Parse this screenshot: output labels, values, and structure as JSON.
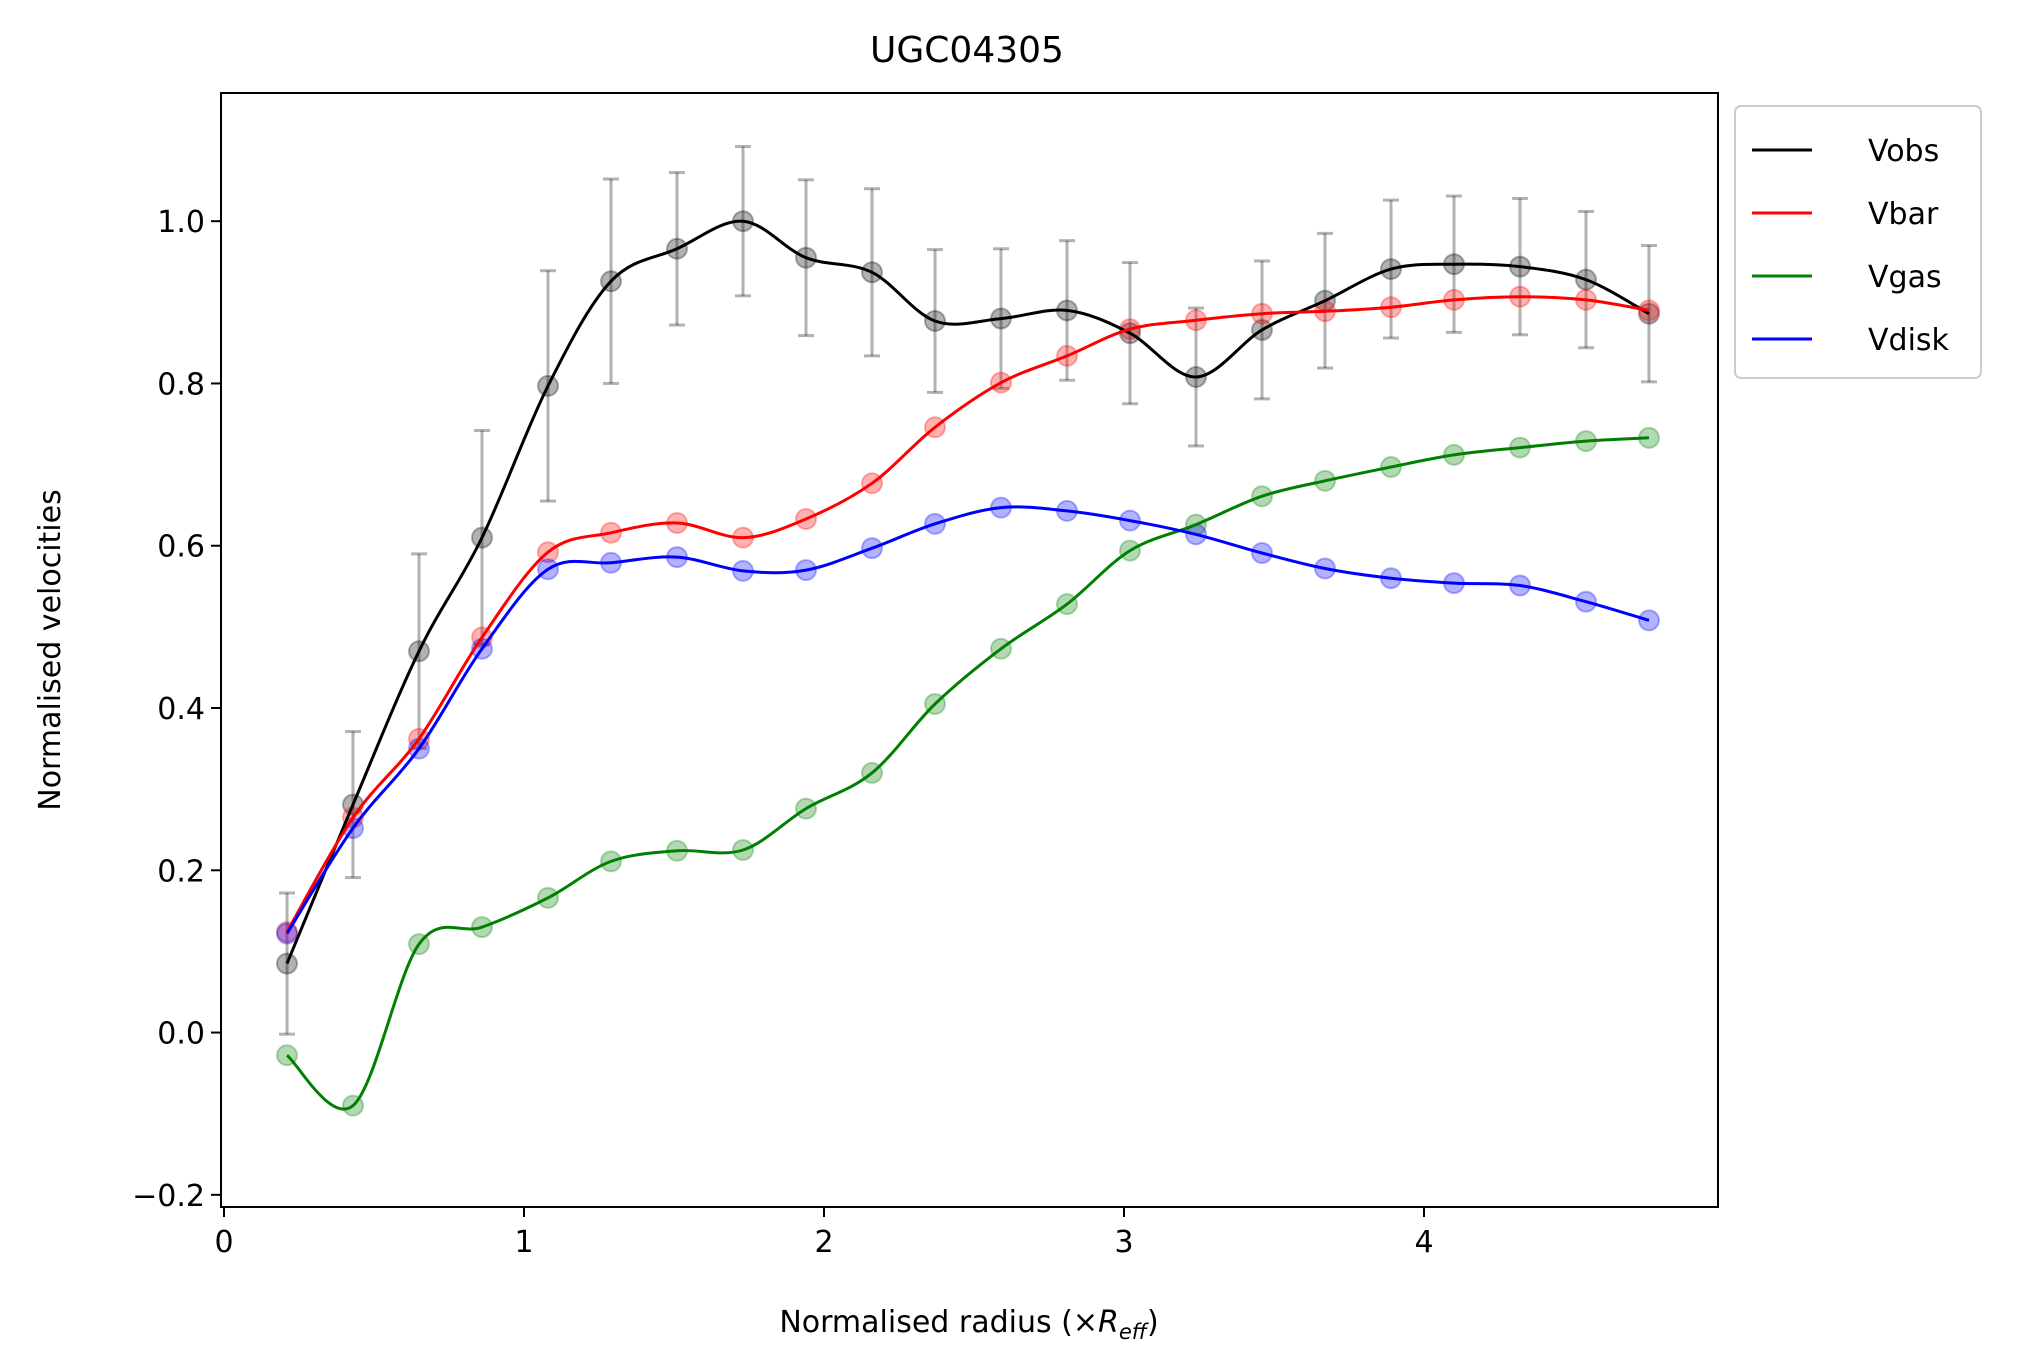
{
  "chart_data": {
    "type": "line",
    "title": "UGC04305",
    "xlabel_prefix": "Normalised radius (×",
    "xlabel_var": "R",
    "xlabel_sub": "eff",
    "xlabel_suffix": ")",
    "ylabel": "Normalised velocities",
    "xlim": [
      -0.01,
      4.98
    ],
    "ylim": [
      -0.215,
      1.158
    ],
    "xticks": [
      0,
      1,
      2,
      3,
      4
    ],
    "xtick_labels": [
      "0",
      "1",
      "2",
      "3",
      "4"
    ],
    "yticks": [
      -0.2,
      0.0,
      0.2,
      0.4,
      0.6,
      0.8,
      1.0
    ],
    "ytick_labels": [
      "−0.2",
      "0.0",
      "0.2",
      "0.4",
      "0.6",
      "0.8",
      "1.0"
    ],
    "grid": false,
    "legend_position": "outside-top-right",
    "x": [
      0.21,
      0.43,
      0.65,
      0.86,
      1.08,
      1.29,
      1.51,
      1.73,
      1.94,
      2.16,
      2.37,
      2.59,
      2.81,
      3.02,
      3.24,
      3.46,
      3.67,
      3.89,
      4.1,
      4.32,
      4.54,
      4.75
    ],
    "series": [
      {
        "name": "Vobs",
        "color": "#000000",
        "values": [
          0.085,
          0.281,
          0.47,
          0.61,
          0.797,
          0.926,
          0.966,
          1.0,
          0.955,
          0.937,
          0.877,
          0.88,
          0.89,
          0.862,
          0.808,
          0.866,
          0.902,
          0.941,
          0.947,
          0.944,
          0.928,
          0.886
        ],
        "errors": [
          0.087,
          0.09,
          0.12,
          0.132,
          0.142,
          0.126,
          0.094,
          0.092,
          0.096,
          0.103,
          0.088,
          0.086,
          0.086,
          0.087,
          0.085,
          0.085,
          0.083,
          0.085,
          0.084,
          0.084,
          0.084,
          0.084
        ]
      },
      {
        "name": "Vbar",
        "color": "#ff0000",
        "values": [
          0.124,
          0.265,
          0.362,
          0.487,
          0.592,
          0.616,
          0.628,
          0.61,
          0.633,
          0.677,
          0.746,
          0.801,
          0.834,
          0.867,
          0.878,
          0.886,
          0.889,
          0.894,
          0.903,
          0.907,
          0.903,
          0.89
        ]
      },
      {
        "name": "Vgas",
        "color": "#008000",
        "values": [
          -0.028,
          -0.09,
          0.109,
          0.13,
          0.166,
          0.211,
          0.224,
          0.225,
          0.276,
          0.32,
          0.405,
          0.473,
          0.528,
          0.594,
          0.626,
          0.661,
          0.68,
          0.697,
          0.712,
          0.721,
          0.729,
          0.733
        ]
      },
      {
        "name": "Vdisk",
        "color": "#0000ff",
        "values": [
          0.122,
          0.252,
          0.35,
          0.473,
          0.571,
          0.579,
          0.586,
          0.569,
          0.57,
          0.597,
          0.627,
          0.647,
          0.643,
          0.631,
          0.614,
          0.591,
          0.572,
          0.56,
          0.554,
          0.551,
          0.531,
          0.508
        ]
      }
    ]
  }
}
